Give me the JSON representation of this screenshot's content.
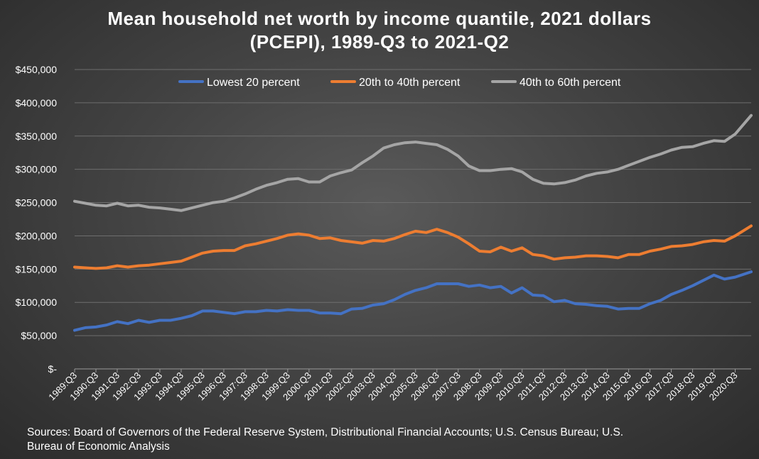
{
  "chart_data": {
    "type": "line",
    "title_lines": [
      "Mean household net worth by income quantile, 2021 dollars",
      "(PCEPI), 1989-Q3 to 2021-Q2"
    ],
    "xlabel": "",
    "ylabel": "",
    "ylim": [
      0,
      450000
    ],
    "y_ticks": [
      0,
      50000,
      100000,
      150000,
      200000,
      250000,
      300000,
      350000,
      400000,
      450000
    ],
    "y_tick_labels": [
      "$-",
      "$50,000",
      "$100,000",
      "$150,000",
      "$200,000",
      "$250,000",
      "$300,000",
      "$350,000",
      "$400,000",
      "$450,000"
    ],
    "x_tick_labels": [
      "1989:Q3",
      "1990:Q3",
      "1991:Q3",
      "1992:Q3",
      "1993:Q3",
      "1994:Q3",
      "1995:Q3",
      "1996:Q3",
      "1997:Q3",
      "1998:Q3",
      "1999:Q3",
      "2000:Q3",
      "2001:Q3",
      "2002:Q3",
      "2003:Q3",
      "2004:Q3",
      "2005:Q3",
      "2006:Q3",
      "2007:Q3",
      "2008:Q3",
      "2009:Q3",
      "2010:Q3",
      "2011:Q3",
      "2012:Q3",
      "2013:Q3",
      "2014:Q3",
      "2015:Q3",
      "2016:Q3",
      "2017:Q3",
      "2018:Q3",
      "2019:Q3",
      "2020:Q3"
    ],
    "x_start": "1989:Q3",
    "x_end": "2021:Q2",
    "grid": true,
    "legend_position": "top",
    "series": [
      {
        "name": "Lowest 20 percent",
        "color": "#4472c4",
        "points": [
          [
            "1989:Q3",
            58000
          ],
          [
            "1990:Q1",
            62000
          ],
          [
            "1990:Q3",
            63000
          ],
          [
            "1991:Q1",
            66000
          ],
          [
            "1991:Q3",
            71000
          ],
          [
            "1992:Q1",
            68000
          ],
          [
            "1992:Q3",
            73000
          ],
          [
            "1993:Q1",
            70000
          ],
          [
            "1993:Q3",
            73000
          ],
          [
            "1994:Q1",
            73000
          ],
          [
            "1994:Q3",
            76000
          ],
          [
            "1995:Q1",
            80000
          ],
          [
            "1995:Q3",
            87000
          ],
          [
            "1996:Q1",
            87000
          ],
          [
            "1996:Q3",
            85000
          ],
          [
            "1997:Q1",
            83000
          ],
          [
            "1997:Q3",
            86000
          ],
          [
            "1998:Q1",
            86000
          ],
          [
            "1998:Q3",
            88000
          ],
          [
            "1999:Q1",
            87000
          ],
          [
            "1999:Q3",
            89000
          ],
          [
            "2000:Q1",
            88000
          ],
          [
            "2000:Q3",
            88000
          ],
          [
            "2001:Q1",
            84000
          ],
          [
            "2001:Q3",
            84000
          ],
          [
            "2002:Q1",
            83000
          ],
          [
            "2002:Q3",
            90000
          ],
          [
            "2003:Q1",
            91000
          ],
          [
            "2003:Q3",
            96000
          ],
          [
            "2004:Q1",
            98000
          ],
          [
            "2004:Q3",
            104000
          ],
          [
            "2005:Q1",
            112000
          ],
          [
            "2005:Q3",
            118000
          ],
          [
            "2006:Q1",
            122000
          ],
          [
            "2006:Q3",
            128000
          ],
          [
            "2007:Q1",
            128000
          ],
          [
            "2007:Q3",
            128000
          ],
          [
            "2008:Q1",
            124000
          ],
          [
            "2008:Q3",
            126000
          ],
          [
            "2009:Q1",
            122000
          ],
          [
            "2009:Q3",
            124000
          ],
          [
            "2010:Q1",
            114000
          ],
          [
            "2010:Q3",
            122000
          ],
          [
            "2011:Q1",
            111000
          ],
          [
            "2011:Q3",
            110000
          ],
          [
            "2012:Q1",
            101000
          ],
          [
            "2012:Q3",
            103000
          ],
          [
            "2013:Q1",
            98000
          ],
          [
            "2013:Q3",
            97000
          ],
          [
            "2014:Q1",
            95000
          ],
          [
            "2014:Q3",
            94000
          ],
          [
            "2015:Q1",
            90000
          ],
          [
            "2015:Q3",
            91000
          ],
          [
            "2016:Q1",
            91000
          ],
          [
            "2016:Q3",
            98000
          ],
          [
            "2017:Q1",
            103000
          ],
          [
            "2017:Q3",
            112000
          ],
          [
            "2018:Q1",
            118000
          ],
          [
            "2018:Q3",
            125000
          ],
          [
            "2019:Q1",
            133000
          ],
          [
            "2019:Q3",
            141000
          ],
          [
            "2020:Q1",
            135000
          ],
          [
            "2020:Q3",
            138000
          ],
          [
            "2021:Q2",
            146000
          ]
        ]
      },
      {
        "name": "20th to 40th percent",
        "color": "#ed7d31",
        "points": [
          [
            "1989:Q3",
            153000
          ],
          [
            "1990:Q1",
            152000
          ],
          [
            "1990:Q3",
            151000
          ],
          [
            "1991:Q1",
            152000
          ],
          [
            "1991:Q3",
            155000
          ],
          [
            "1992:Q1",
            153000
          ],
          [
            "1992:Q3",
            155000
          ],
          [
            "1993:Q1",
            156000
          ],
          [
            "1993:Q3",
            158000
          ],
          [
            "1994:Q1",
            160000
          ],
          [
            "1994:Q3",
            162000
          ],
          [
            "1995:Q1",
            168000
          ],
          [
            "1995:Q3",
            174000
          ],
          [
            "1996:Q1",
            177000
          ],
          [
            "1996:Q3",
            178000
          ],
          [
            "1997:Q1",
            178000
          ],
          [
            "1997:Q3",
            185000
          ],
          [
            "1998:Q1",
            188000
          ],
          [
            "1998:Q3",
            192000
          ],
          [
            "1999:Q1",
            196000
          ],
          [
            "1999:Q3",
            201000
          ],
          [
            "2000:Q1",
            203000
          ],
          [
            "2000:Q3",
            201000
          ],
          [
            "2001:Q1",
            196000
          ],
          [
            "2001:Q3",
            197000
          ],
          [
            "2002:Q1",
            193000
          ],
          [
            "2002:Q3",
            191000
          ],
          [
            "2003:Q1",
            189000
          ],
          [
            "2003:Q3",
            193000
          ],
          [
            "2004:Q1",
            192000
          ],
          [
            "2004:Q3",
            196000
          ],
          [
            "2005:Q1",
            202000
          ],
          [
            "2005:Q3",
            207000
          ],
          [
            "2006:Q1",
            205000
          ],
          [
            "2006:Q3",
            210000
          ],
          [
            "2007:Q1",
            205000
          ],
          [
            "2007:Q3",
            198000
          ],
          [
            "2008:Q1",
            188000
          ],
          [
            "2008:Q3",
            177000
          ],
          [
            "2009:Q1",
            176000
          ],
          [
            "2009:Q3",
            183000
          ],
          [
            "2010:Q1",
            177000
          ],
          [
            "2010:Q3",
            182000
          ],
          [
            "2011:Q1",
            172000
          ],
          [
            "2011:Q3",
            170000
          ],
          [
            "2012:Q1",
            165000
          ],
          [
            "2012:Q3",
            167000
          ],
          [
            "2013:Q1",
            168000
          ],
          [
            "2013:Q3",
            170000
          ],
          [
            "2014:Q1",
            170000
          ],
          [
            "2014:Q3",
            169000
          ],
          [
            "2015:Q1",
            167000
          ],
          [
            "2015:Q3",
            172000
          ],
          [
            "2016:Q1",
            172000
          ],
          [
            "2016:Q3",
            177000
          ],
          [
            "2017:Q1",
            180000
          ],
          [
            "2017:Q3",
            184000
          ],
          [
            "2018:Q1",
            185000
          ],
          [
            "2018:Q3",
            187000
          ],
          [
            "2019:Q1",
            191000
          ],
          [
            "2019:Q3",
            193000
          ],
          [
            "2020:Q1",
            192000
          ],
          [
            "2020:Q3",
            200000
          ],
          [
            "2021:Q2",
            215000
          ]
        ]
      },
      {
        "name": "40th to 60th percent",
        "color": "#a5a5a5",
        "points": [
          [
            "1989:Q3",
            252000
          ],
          [
            "1990:Q1",
            249000
          ],
          [
            "1990:Q3",
            246000
          ],
          [
            "1991:Q1",
            245000
          ],
          [
            "1991:Q3",
            249000
          ],
          [
            "1992:Q1",
            245000
          ],
          [
            "1992:Q3",
            246000
          ],
          [
            "1993:Q1",
            243000
          ],
          [
            "1993:Q3",
            242000
          ],
          [
            "1994:Q1",
            240000
          ],
          [
            "1994:Q3",
            238000
          ],
          [
            "1995:Q1",
            242000
          ],
          [
            "1995:Q3",
            246000
          ],
          [
            "1996:Q1",
            250000
          ],
          [
            "1996:Q3",
            252000
          ],
          [
            "1997:Q1",
            257000
          ],
          [
            "1997:Q3",
            263000
          ],
          [
            "1998:Q1",
            270000
          ],
          [
            "1998:Q3",
            276000
          ],
          [
            "1999:Q1",
            280000
          ],
          [
            "1999:Q3",
            285000
          ],
          [
            "2000:Q1",
            286000
          ],
          [
            "2000:Q3",
            281000
          ],
          [
            "2001:Q1",
            281000
          ],
          [
            "2001:Q3",
            290000
          ],
          [
            "2002:Q1",
            295000
          ],
          [
            "2002:Q3",
            299000
          ],
          [
            "2003:Q1",
            310000
          ],
          [
            "2003:Q3",
            320000
          ],
          [
            "2004:Q1",
            332000
          ],
          [
            "2004:Q3",
            337000
          ],
          [
            "2005:Q1",
            340000
          ],
          [
            "2005:Q3",
            341000
          ],
          [
            "2006:Q1",
            339000
          ],
          [
            "2006:Q3",
            337000
          ],
          [
            "2007:Q1",
            330000
          ],
          [
            "2007:Q3",
            320000
          ],
          [
            "2008:Q1",
            305000
          ],
          [
            "2008:Q3",
            298000
          ],
          [
            "2009:Q1",
            298000
          ],
          [
            "2009:Q3",
            300000
          ],
          [
            "2010:Q1",
            301000
          ],
          [
            "2010:Q3",
            296000
          ],
          [
            "2011:Q1",
            285000
          ],
          [
            "2011:Q3",
            279000
          ],
          [
            "2012:Q1",
            278000
          ],
          [
            "2012:Q3",
            280000
          ],
          [
            "2013:Q1",
            284000
          ],
          [
            "2013:Q3",
            290000
          ],
          [
            "2014:Q1",
            294000
          ],
          [
            "2014:Q3",
            296000
          ],
          [
            "2015:Q1",
            300000
          ],
          [
            "2015:Q3",
            306000
          ],
          [
            "2016:Q1",
            312000
          ],
          [
            "2016:Q3",
            318000
          ],
          [
            "2017:Q1",
            323000
          ],
          [
            "2017:Q3",
            329000
          ],
          [
            "2018:Q1",
            333000
          ],
          [
            "2018:Q3",
            334000
          ],
          [
            "2019:Q1",
            339000
          ],
          [
            "2019:Q3",
            343000
          ],
          [
            "2020:Q1",
            342000
          ],
          [
            "2020:Q3",
            353000
          ],
          [
            "2021:Q2",
            381000
          ]
        ]
      }
    ]
  },
  "source_lines": [
    "Sources: Board of Governors of the Federal Reserve System, Distributional Financial Accounts; U.S. Census Bureau; U.S.",
    "Bureau of Economic Analysis"
  ]
}
